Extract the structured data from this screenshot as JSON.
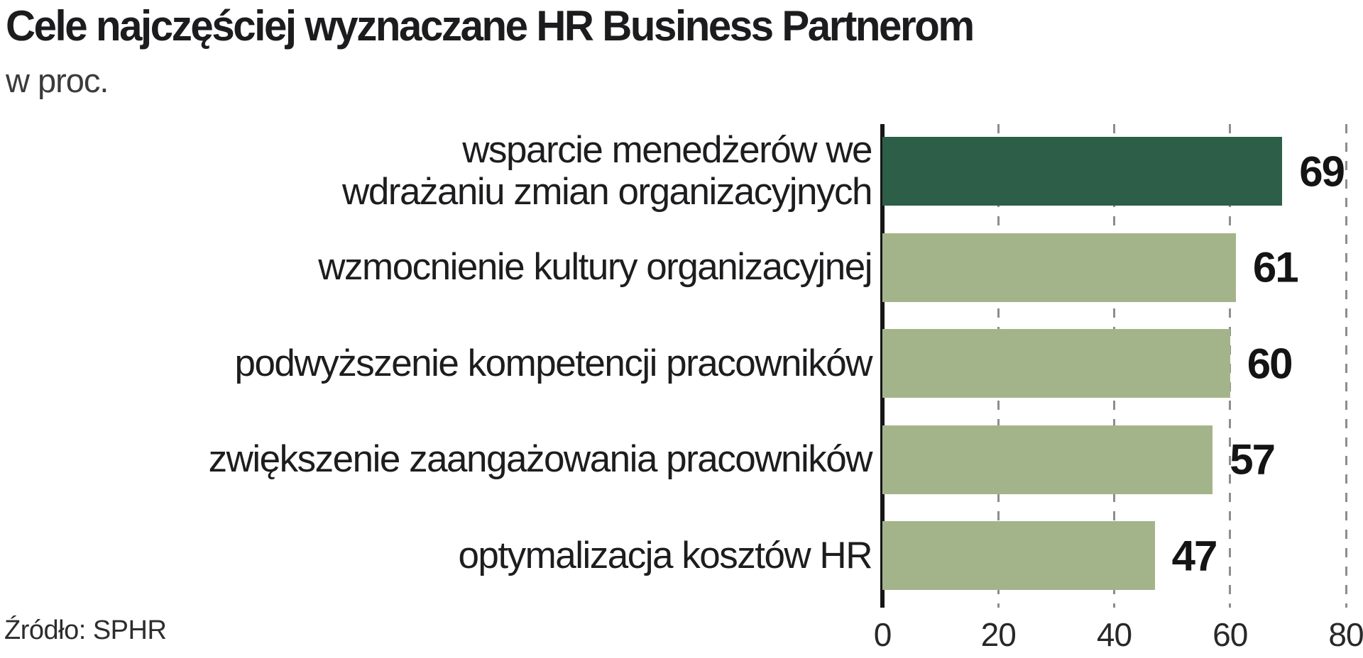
{
  "title": "Cele najczęściej wyznaczane HR Business Partnerom",
  "subtitle": "w proc.",
  "source": "Źródło: SPHR",
  "colors": {
    "highlight_bar": "#2d5e47",
    "bar": "#a4b48a",
    "axis": "#161616",
    "gridline": "#8d8d8d",
    "text": "#1d1d1f"
  },
  "chart_data": {
    "type": "bar",
    "orientation": "horizontal",
    "title": "Cele najczęściej wyznaczane HR Business Partnerom",
    "subtitle": "w proc.",
    "source": "Źródło: SPHR",
    "categories": [
      "wsparcie menedżerów we\nwdrażaniu zmian organizacyjnych",
      "wzmocnienie kultury organizacyjnej",
      "podwyższenie kompetencji pracowników",
      "zwiększenie zaangażowania pracowników",
      "optymalizacja kosztów HR"
    ],
    "values": [
      69,
      61,
      60,
      57,
      47
    ],
    "highlighted_index": 0,
    "xlim": [
      0,
      80
    ],
    "x_ticks": [
      0,
      20,
      40,
      60,
      80
    ],
    "grid": "dashed-vertical-at-ticks",
    "value_labels": true,
    "legend": false
  }
}
